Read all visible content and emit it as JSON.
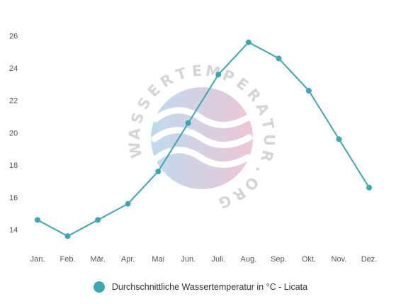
{
  "chart_data": {
    "type": "line",
    "title": "",
    "xlabel": "",
    "ylabel": "",
    "categories": [
      "Jan.",
      "Feb.",
      "Mär.",
      "Apr.",
      "Mai",
      "Jun.",
      "Juli.",
      "Aug.",
      "Sep.",
      "Okt.",
      "Nov.",
      "Dez."
    ],
    "series": [
      {
        "name": "Durchschnittliche Wassertemperatur in °C - Licata",
        "values": [
          14.6,
          13.6,
          14.6,
          15.6,
          17.6,
          20.6,
          23.6,
          25.6,
          24.6,
          22.6,
          19.6,
          16.6
        ],
        "color": "#3ba7b2"
      }
    ],
    "yticks": [
      14,
      16,
      18,
      20,
      22,
      24,
      26
    ],
    "ylim": [
      12.6,
      26.9
    ],
    "grid": false,
    "legend": "bottom"
  },
  "watermark": {
    "text": "WASSERTEMPERATUR.ORG",
    "colors": [
      "#a9cfe9",
      "#e8b3c7"
    ]
  }
}
